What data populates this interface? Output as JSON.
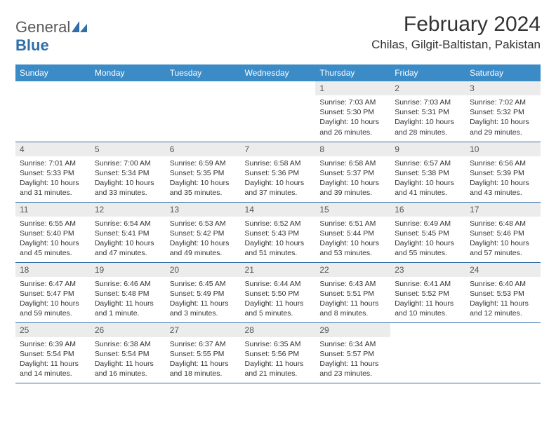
{
  "brand": {
    "word1": "General",
    "word2": "Blue"
  },
  "title": "February 2024",
  "location": "Chilas, Gilgit-Baltistan, Pakistan",
  "colors": {
    "header_bg": "#3b8bc7",
    "header_text": "#ffffff",
    "daynum_bg": "#ececec",
    "border": "#2f6ea8",
    "logo_accent": "#2f6ea8"
  },
  "day_headers": [
    "Sunday",
    "Monday",
    "Tuesday",
    "Wednesday",
    "Thursday",
    "Friday",
    "Saturday"
  ],
  "weeks": [
    [
      {
        "n": "",
        "empty": true
      },
      {
        "n": "",
        "empty": true
      },
      {
        "n": "",
        "empty": true
      },
      {
        "n": "",
        "empty": true
      },
      {
        "n": "1",
        "sunrise": "Sunrise: 7:03 AM",
        "sunset": "Sunset: 5:30 PM",
        "daylight": "Daylight: 10 hours and 26 minutes."
      },
      {
        "n": "2",
        "sunrise": "Sunrise: 7:03 AM",
        "sunset": "Sunset: 5:31 PM",
        "daylight": "Daylight: 10 hours and 28 minutes."
      },
      {
        "n": "3",
        "sunrise": "Sunrise: 7:02 AM",
        "sunset": "Sunset: 5:32 PM",
        "daylight": "Daylight: 10 hours and 29 minutes."
      }
    ],
    [
      {
        "n": "4",
        "sunrise": "Sunrise: 7:01 AM",
        "sunset": "Sunset: 5:33 PM",
        "daylight": "Daylight: 10 hours and 31 minutes."
      },
      {
        "n": "5",
        "sunrise": "Sunrise: 7:00 AM",
        "sunset": "Sunset: 5:34 PM",
        "daylight": "Daylight: 10 hours and 33 minutes."
      },
      {
        "n": "6",
        "sunrise": "Sunrise: 6:59 AM",
        "sunset": "Sunset: 5:35 PM",
        "daylight": "Daylight: 10 hours and 35 minutes."
      },
      {
        "n": "7",
        "sunrise": "Sunrise: 6:58 AM",
        "sunset": "Sunset: 5:36 PM",
        "daylight": "Daylight: 10 hours and 37 minutes."
      },
      {
        "n": "8",
        "sunrise": "Sunrise: 6:58 AM",
        "sunset": "Sunset: 5:37 PM",
        "daylight": "Daylight: 10 hours and 39 minutes."
      },
      {
        "n": "9",
        "sunrise": "Sunrise: 6:57 AM",
        "sunset": "Sunset: 5:38 PM",
        "daylight": "Daylight: 10 hours and 41 minutes."
      },
      {
        "n": "10",
        "sunrise": "Sunrise: 6:56 AM",
        "sunset": "Sunset: 5:39 PM",
        "daylight": "Daylight: 10 hours and 43 minutes."
      }
    ],
    [
      {
        "n": "11",
        "sunrise": "Sunrise: 6:55 AM",
        "sunset": "Sunset: 5:40 PM",
        "daylight": "Daylight: 10 hours and 45 minutes."
      },
      {
        "n": "12",
        "sunrise": "Sunrise: 6:54 AM",
        "sunset": "Sunset: 5:41 PM",
        "daylight": "Daylight: 10 hours and 47 minutes."
      },
      {
        "n": "13",
        "sunrise": "Sunrise: 6:53 AM",
        "sunset": "Sunset: 5:42 PM",
        "daylight": "Daylight: 10 hours and 49 minutes."
      },
      {
        "n": "14",
        "sunrise": "Sunrise: 6:52 AM",
        "sunset": "Sunset: 5:43 PM",
        "daylight": "Daylight: 10 hours and 51 minutes."
      },
      {
        "n": "15",
        "sunrise": "Sunrise: 6:51 AM",
        "sunset": "Sunset: 5:44 PM",
        "daylight": "Daylight: 10 hours and 53 minutes."
      },
      {
        "n": "16",
        "sunrise": "Sunrise: 6:49 AM",
        "sunset": "Sunset: 5:45 PM",
        "daylight": "Daylight: 10 hours and 55 minutes."
      },
      {
        "n": "17",
        "sunrise": "Sunrise: 6:48 AM",
        "sunset": "Sunset: 5:46 PM",
        "daylight": "Daylight: 10 hours and 57 minutes."
      }
    ],
    [
      {
        "n": "18",
        "sunrise": "Sunrise: 6:47 AM",
        "sunset": "Sunset: 5:47 PM",
        "daylight": "Daylight: 10 hours and 59 minutes."
      },
      {
        "n": "19",
        "sunrise": "Sunrise: 6:46 AM",
        "sunset": "Sunset: 5:48 PM",
        "daylight": "Daylight: 11 hours and 1 minute."
      },
      {
        "n": "20",
        "sunrise": "Sunrise: 6:45 AM",
        "sunset": "Sunset: 5:49 PM",
        "daylight": "Daylight: 11 hours and 3 minutes."
      },
      {
        "n": "21",
        "sunrise": "Sunrise: 6:44 AM",
        "sunset": "Sunset: 5:50 PM",
        "daylight": "Daylight: 11 hours and 5 minutes."
      },
      {
        "n": "22",
        "sunrise": "Sunrise: 6:43 AM",
        "sunset": "Sunset: 5:51 PM",
        "daylight": "Daylight: 11 hours and 8 minutes."
      },
      {
        "n": "23",
        "sunrise": "Sunrise: 6:41 AM",
        "sunset": "Sunset: 5:52 PM",
        "daylight": "Daylight: 11 hours and 10 minutes."
      },
      {
        "n": "24",
        "sunrise": "Sunrise: 6:40 AM",
        "sunset": "Sunset: 5:53 PM",
        "daylight": "Daylight: 11 hours and 12 minutes."
      }
    ],
    [
      {
        "n": "25",
        "sunrise": "Sunrise: 6:39 AM",
        "sunset": "Sunset: 5:54 PM",
        "daylight": "Daylight: 11 hours and 14 minutes."
      },
      {
        "n": "26",
        "sunrise": "Sunrise: 6:38 AM",
        "sunset": "Sunset: 5:54 PM",
        "daylight": "Daylight: 11 hours and 16 minutes."
      },
      {
        "n": "27",
        "sunrise": "Sunrise: 6:37 AM",
        "sunset": "Sunset: 5:55 PM",
        "daylight": "Daylight: 11 hours and 18 minutes."
      },
      {
        "n": "28",
        "sunrise": "Sunrise: 6:35 AM",
        "sunset": "Sunset: 5:56 PM",
        "daylight": "Daylight: 11 hours and 21 minutes."
      },
      {
        "n": "29",
        "sunrise": "Sunrise: 6:34 AM",
        "sunset": "Sunset: 5:57 PM",
        "daylight": "Daylight: 11 hours and 23 minutes."
      },
      {
        "n": "",
        "empty": true
      },
      {
        "n": "",
        "empty": true
      }
    ]
  ]
}
